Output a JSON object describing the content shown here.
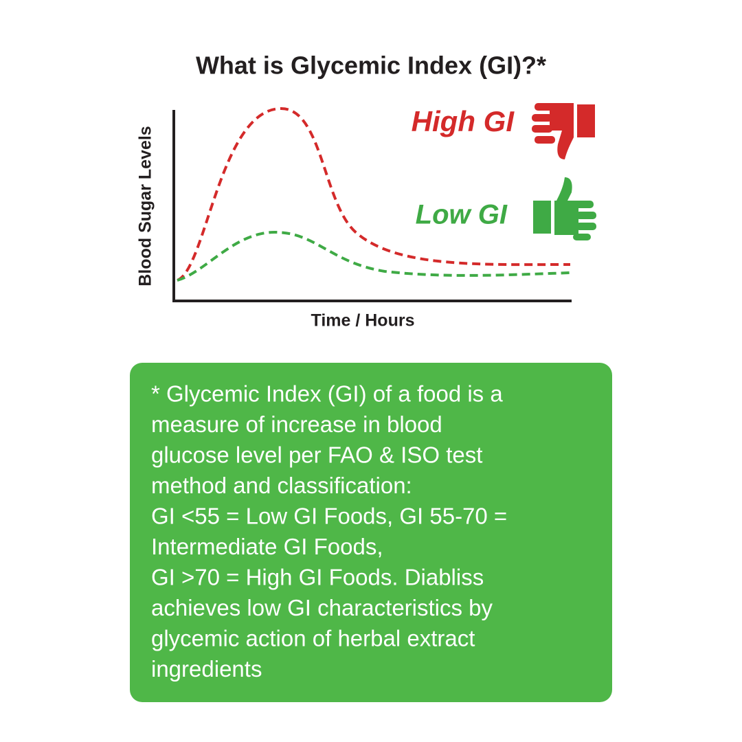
{
  "title": "What is Glycemic Index (GI)?*",
  "diagram": {
    "y_axis_label": "Blood Sugar Levels",
    "x_axis_label": "Time / Hours",
    "curves": [
      {
        "label": "High GI",
        "color": "#d42a2a"
      },
      {
        "label": "Low GI",
        "color": "#3faa45"
      }
    ]
  },
  "note": {
    "lines": [
      "* Glycemic Index (GI) of a food is a",
      "measure of increase in blood",
      "glucose level per FAO & ISO test",
      "method and classification:",
      "GI <55 = Low GI Foods, GI 55-70 =",
      "Intermediate GI Foods,",
      "GI >70 = High GI Foods.  Diabliss",
      "achieves low GI characteristics by",
      "glycemic action of herbal extract",
      "ingredients"
    ]
  }
}
